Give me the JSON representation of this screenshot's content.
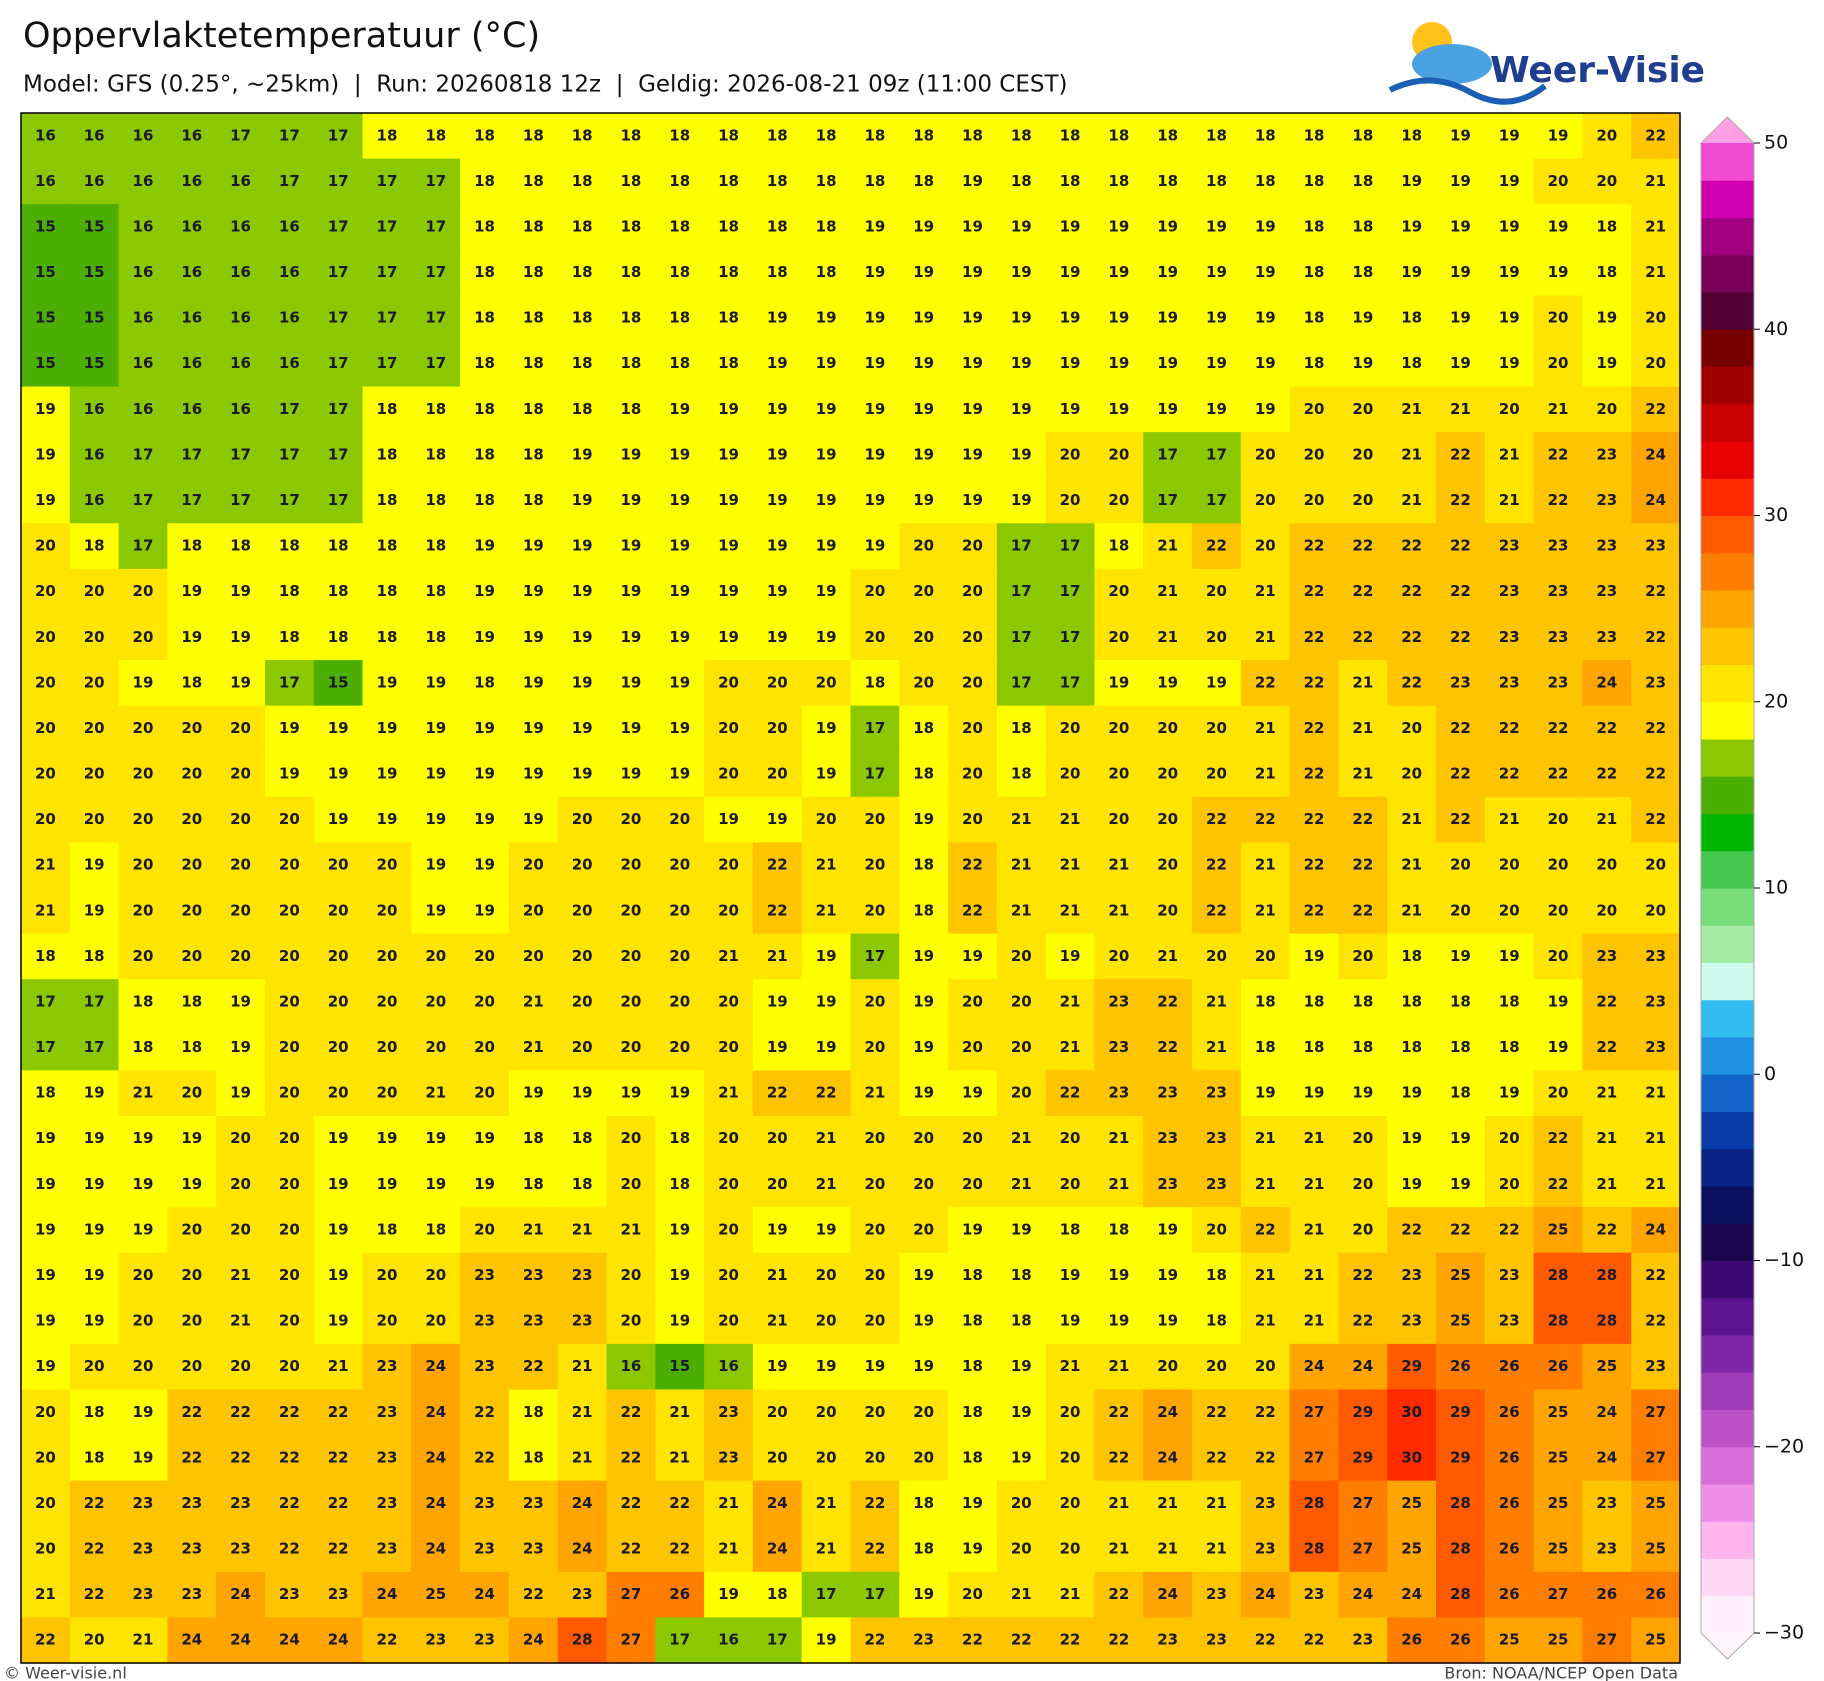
{
  "header": {
    "title": "Oppervlaktetemperatuur (°C)",
    "subtitle": "Model: GFS (0.25°, ~25km)  |  Run: 20260818 12z  |  Geldig: 2026-08-21 09z (11:00 CEST)",
    "logo": "Weer-Visie"
  },
  "footer": {
    "left": "© Weer-visie.nl",
    "right": "Bron: NOAA/NCEP Open Data"
  },
  "map": {
    "values": [
      [
        16,
        16,
        16,
        16,
        17,
        17,
        17,
        18,
        18,
        18,
        18,
        18,
        18,
        18,
        18,
        18,
        18,
        18,
        18,
        18,
        18,
        18,
        18,
        18,
        18,
        18,
        18,
        18,
        18,
        19,
        19,
        19,
        20,
        22
      ],
      [
        16,
        16,
        16,
        16,
        16,
        17,
        17,
        17,
        17,
        18,
        18,
        18,
        18,
        18,
        18,
        18,
        18,
        18,
        18,
        19,
        18,
        18,
        18,
        18,
        18,
        18,
        18,
        18,
        19,
        19,
        19,
        20,
        20,
        21
      ],
      [
        15,
        15,
        16,
        16,
        16,
        16,
        17,
        17,
        17,
        18,
        18,
        18,
        18,
        18,
        18,
        18,
        18,
        19,
        19,
        19,
        19,
        19,
        19,
        19,
        19,
        19,
        18,
        18,
        19,
        19,
        19,
        19,
        18,
        21
      ],
      [
        15,
        15,
        16,
        16,
        16,
        16,
        17,
        17,
        17,
        18,
        18,
        18,
        18,
        18,
        18,
        18,
        18,
        19,
        19,
        19,
        19,
        19,
        19,
        19,
        19,
        19,
        18,
        18,
        19,
        19,
        19,
        19,
        18,
        21
      ],
      [
        15,
        15,
        16,
        16,
        16,
        16,
        17,
        17,
        17,
        18,
        18,
        18,
        18,
        18,
        18,
        19,
        19,
        19,
        19,
        19,
        19,
        19,
        19,
        19,
        19,
        19,
        18,
        19,
        18,
        19,
        19,
        20,
        19,
        20
      ],
      [
        15,
        15,
        16,
        16,
        16,
        16,
        17,
        17,
        17,
        18,
        18,
        18,
        18,
        18,
        18,
        19,
        19,
        19,
        19,
        19,
        19,
        19,
        19,
        19,
        19,
        19,
        18,
        19,
        18,
        19,
        19,
        20,
        19,
        20
      ],
      [
        19,
        16,
        16,
        16,
        16,
        17,
        17,
        18,
        18,
        18,
        18,
        18,
        18,
        19,
        19,
        19,
        19,
        19,
        19,
        19,
        19,
        19,
        19,
        19,
        19,
        19,
        20,
        20,
        21,
        21,
        20,
        21,
        20,
        22
      ],
      [
        19,
        16,
        17,
        17,
        17,
        17,
        17,
        18,
        18,
        18,
        18,
        19,
        19,
        19,
        19,
        19,
        19,
        19,
        19,
        19,
        19,
        20,
        20,
        17,
        17,
        20,
        20,
        20,
        21,
        22,
        21,
        22,
        23,
        24
      ],
      [
        19,
        16,
        17,
        17,
        17,
        17,
        17,
        18,
        18,
        18,
        18,
        19,
        19,
        19,
        19,
        19,
        19,
        19,
        19,
        19,
        19,
        20,
        20,
        17,
        17,
        20,
        20,
        20,
        21,
        22,
        21,
        22,
        23,
        24
      ],
      [
        20,
        18,
        17,
        18,
        18,
        18,
        18,
        18,
        18,
        19,
        19,
        19,
        19,
        19,
        19,
        19,
        19,
        19,
        20,
        20,
        17,
        17,
        18,
        21,
        22,
        20,
        22,
        22,
        22,
        22,
        23,
        23,
        23,
        23
      ],
      [
        20,
        20,
        20,
        19,
        19,
        18,
        18,
        18,
        18,
        19,
        19,
        19,
        19,
        19,
        19,
        19,
        19,
        20,
        20,
        20,
        17,
        17,
        20,
        21,
        20,
        21,
        22,
        22,
        22,
        22,
        23,
        23,
        23,
        22
      ],
      [
        20,
        20,
        20,
        19,
        19,
        18,
        18,
        18,
        18,
        19,
        19,
        19,
        19,
        19,
        19,
        19,
        19,
        20,
        20,
        20,
        17,
        17,
        20,
        21,
        20,
        21,
        22,
        22,
        22,
        22,
        23,
        23,
        23,
        22
      ],
      [
        20,
        20,
        19,
        18,
        19,
        17,
        15,
        19,
        19,
        18,
        19,
        19,
        19,
        19,
        20,
        20,
        20,
        18,
        20,
        20,
        17,
        17,
        19,
        19,
        19,
        22,
        22,
        21,
        22,
        23,
        23,
        23,
        24,
        23
      ],
      [
        20,
        20,
        20,
        20,
        20,
        19,
        19,
        19,
        19,
        19,
        19,
        19,
        19,
        19,
        20,
        20,
        19,
        17,
        18,
        20,
        18,
        20,
        20,
        20,
        20,
        21,
        22,
        21,
        20,
        22,
        22,
        22,
        22,
        22
      ],
      [
        20,
        20,
        20,
        20,
        20,
        19,
        19,
        19,
        19,
        19,
        19,
        19,
        19,
        19,
        20,
        20,
        19,
        17,
        18,
        20,
        18,
        20,
        20,
        20,
        20,
        21,
        22,
        21,
        20,
        22,
        22,
        22,
        22,
        22
      ],
      [
        20,
        20,
        20,
        20,
        20,
        20,
        19,
        19,
        19,
        19,
        19,
        20,
        20,
        20,
        19,
        19,
        20,
        20,
        19,
        20,
        21,
        21,
        20,
        20,
        22,
        22,
        22,
        22,
        21,
        22,
        21,
        20,
        21,
        22
      ],
      [
        21,
        19,
        20,
        20,
        20,
        20,
        20,
        20,
        19,
        19,
        20,
        20,
        20,
        20,
        20,
        22,
        21,
        20,
        18,
        22,
        21,
        21,
        21,
        20,
        22,
        21,
        22,
        22,
        21,
        20,
        20,
        20,
        20,
        20
      ],
      [
        21,
        19,
        20,
        20,
        20,
        20,
        20,
        20,
        19,
        19,
        20,
        20,
        20,
        20,
        20,
        22,
        21,
        20,
        18,
        22,
        21,
        21,
        21,
        20,
        22,
        21,
        22,
        22,
        21,
        20,
        20,
        20,
        20,
        20
      ],
      [
        18,
        18,
        20,
        20,
        20,
        20,
        20,
        20,
        20,
        20,
        20,
        20,
        20,
        20,
        21,
        21,
        19,
        17,
        19,
        19,
        20,
        19,
        20,
        21,
        20,
        20,
        19,
        20,
        18,
        19,
        19,
        20,
        23,
        23
      ],
      [
        17,
        17,
        18,
        18,
        19,
        20,
        20,
        20,
        20,
        20,
        21,
        20,
        20,
        20,
        20,
        19,
        19,
        20,
        19,
        20,
        20,
        21,
        23,
        22,
        21,
        18,
        18,
        18,
        18,
        18,
        18,
        19,
        22,
        23
      ],
      [
        17,
        17,
        18,
        18,
        19,
        20,
        20,
        20,
        20,
        20,
        21,
        20,
        20,
        20,
        20,
        19,
        19,
        20,
        19,
        20,
        20,
        21,
        23,
        22,
        21,
        18,
        18,
        18,
        18,
        18,
        18,
        19,
        22,
        23
      ],
      [
        18,
        19,
        21,
        20,
        19,
        20,
        20,
        20,
        21,
        20,
        19,
        19,
        19,
        19,
        21,
        22,
        22,
        21,
        19,
        19,
        20,
        22,
        23,
        23,
        23,
        19,
        19,
        19,
        19,
        18,
        19,
        20,
        21,
        21
      ],
      [
        19,
        19,
        19,
        19,
        20,
        20,
        19,
        19,
        19,
        19,
        18,
        18,
        20,
        18,
        20,
        20,
        21,
        20,
        20,
        20,
        21,
        20,
        21,
        23,
        23,
        21,
        21,
        20,
        19,
        19,
        20,
        22,
        21,
        21
      ],
      [
        19,
        19,
        19,
        19,
        20,
        20,
        19,
        19,
        19,
        19,
        18,
        18,
        20,
        18,
        20,
        20,
        21,
        20,
        20,
        20,
        21,
        20,
        21,
        23,
        23,
        21,
        21,
        20,
        19,
        19,
        20,
        22,
        21,
        21
      ],
      [
        19,
        19,
        19,
        20,
        20,
        20,
        19,
        18,
        18,
        20,
        21,
        21,
        21,
        19,
        20,
        19,
        19,
        20,
        20,
        19,
        19,
        18,
        18,
        19,
        20,
        22,
        21,
        20,
        22,
        22,
        22,
        25,
        22,
        24
      ],
      [
        19,
        19,
        20,
        20,
        21,
        20,
        19,
        20,
        20,
        23,
        23,
        23,
        20,
        19,
        20,
        21,
        20,
        20,
        19,
        18,
        18,
        19,
        19,
        19,
        18,
        21,
        21,
        22,
        23,
        25,
        23,
        28,
        28,
        22
      ],
      [
        19,
        19,
        20,
        20,
        21,
        20,
        19,
        20,
        20,
        23,
        23,
        23,
        20,
        19,
        20,
        21,
        20,
        20,
        19,
        18,
        18,
        19,
        19,
        19,
        18,
        21,
        21,
        22,
        23,
        25,
        23,
        28,
        28,
        22
      ],
      [
        19,
        20,
        20,
        20,
        20,
        20,
        21,
        23,
        24,
        23,
        22,
        21,
        16,
        15,
        16,
        19,
        19,
        19,
        19,
        18,
        19,
        21,
        21,
        20,
        20,
        20,
        24,
        24,
        29,
        26,
        26,
        26,
        25,
        23
      ],
      [
        20,
        18,
        19,
        22,
        22,
        22,
        22,
        23,
        24,
        22,
        18,
        21,
        22,
        21,
        23,
        20,
        20,
        20,
        20,
        18,
        19,
        20,
        22,
        24,
        22,
        22,
        27,
        29,
        30,
        29,
        26,
        25,
        24,
        27
      ],
      [
        20,
        18,
        19,
        22,
        22,
        22,
        22,
        23,
        24,
        22,
        18,
        21,
        22,
        21,
        23,
        20,
        20,
        20,
        20,
        18,
        19,
        20,
        22,
        24,
        22,
        22,
        27,
        29,
        30,
        29,
        26,
        25,
        24,
        27
      ],
      [
        20,
        22,
        23,
        23,
        23,
        22,
        22,
        23,
        24,
        23,
        23,
        24,
        22,
        22,
        21,
        24,
        21,
        22,
        18,
        19,
        20,
        20,
        21,
        21,
        21,
        23,
        28,
        27,
        25,
        28,
        26,
        25,
        23,
        25
      ],
      [
        20,
        22,
        23,
        23,
        23,
        22,
        22,
        23,
        24,
        23,
        23,
        24,
        22,
        22,
        21,
        24,
        21,
        22,
        18,
        19,
        20,
        20,
        21,
        21,
        21,
        23,
        28,
        27,
        25,
        28,
        26,
        25,
        23,
        25
      ],
      [
        21,
        22,
        23,
        23,
        24,
        23,
        23,
        24,
        25,
        24,
        22,
        23,
        27,
        26,
        19,
        18,
        17,
        17,
        19,
        20,
        21,
        21,
        22,
        24,
        23,
        24,
        23,
        24,
        24,
        28,
        26,
        27,
        26,
        26
      ],
      [
        22,
        20,
        21,
        24,
        24,
        24,
        24,
        22,
        23,
        23,
        24,
        28,
        27,
        17,
        16,
        17,
        19,
        22,
        23,
        22,
        22,
        22,
        22,
        23,
        23,
        22,
        22,
        23,
        26,
        26,
        25,
        25,
        27,
        25
      ]
    ]
  },
  "colorbar": {
    "lim": [
      -30,
      50
    ],
    "ticks": [
      50,
      40,
      30,
      20,
      10,
      0,
      {
        "value": -10,
        "label": "−10"
      },
      {
        "value": -20,
        "label": "−20"
      },
      {
        "value": -30,
        "label": "−30"
      }
    ],
    "colors": [
      "#fff0fb",
      "#ffd8f5",
      "#ffb4ee",
      "#ee8ee6",
      "#d86ed8",
      "#bc52c8",
      "#a03cb8",
      "#7e28a8",
      "#5c1490",
      "#3c0a70",
      "#1e0650",
      "#0a1060",
      "#0a2284",
      "#0a3ca8",
      "#1464c8",
      "#1e92e0",
      "#32bcf0",
      "#ccfaec",
      "#a4eca4",
      "#78dc78",
      "#46c850",
      "#00b400",
      "#4cae00",
      "#8cc800",
      "#ffff00",
      "#ffe400",
      "#ffc400",
      "#ffa400",
      "#ff7e00",
      "#ff5a00",
      "#ff2a00",
      "#e60000",
      "#c80000",
      "#a00000",
      "#780000",
      "#500032",
      "#780058",
      "#a00080",
      "#d000b0",
      "#f04ad0"
    ],
    "over_color": "#ff9ee4",
    "under_color": "#fff6fd"
  }
}
